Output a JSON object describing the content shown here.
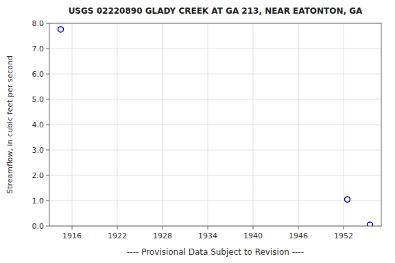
{
  "chart_data": {
    "type": "scatter",
    "title": "USGS 02220890 GLADY CREEK AT GA 213, NEAR EATONTON, GA",
    "ylabel": "Streamflow, in cubic feet per second",
    "xlabel": "---- Provisional Data Subject to Revision ----",
    "x": [
      1914.5,
      1952.5,
      1955.5
    ],
    "values": [
      7.76,
      1.05,
      0.05
    ],
    "color": "#0000cc",
    "marker": "circle",
    "xlim": [
      1913,
      1957
    ],
    "xticks": [
      1916,
      1922,
      1928,
      1934,
      1940,
      1946,
      1952
    ],
    "ylim": [
      0,
      8
    ],
    "yticks": [
      {
        "value": 0,
        "label": "0.0"
      },
      {
        "value": 1,
        "label": "1.0"
      },
      {
        "value": 2,
        "label": "2.0"
      },
      {
        "value": 3,
        "label": "3.0"
      },
      {
        "value": 4,
        "label": "4.0"
      },
      {
        "value": 5,
        "label": "5.0"
      },
      {
        "value": 6,
        "label": "6.0"
      },
      {
        "value": 7,
        "label": "7.0"
      },
      {
        "value": 8,
        "label": "8.0"
      }
    ],
    "grid": true
  }
}
